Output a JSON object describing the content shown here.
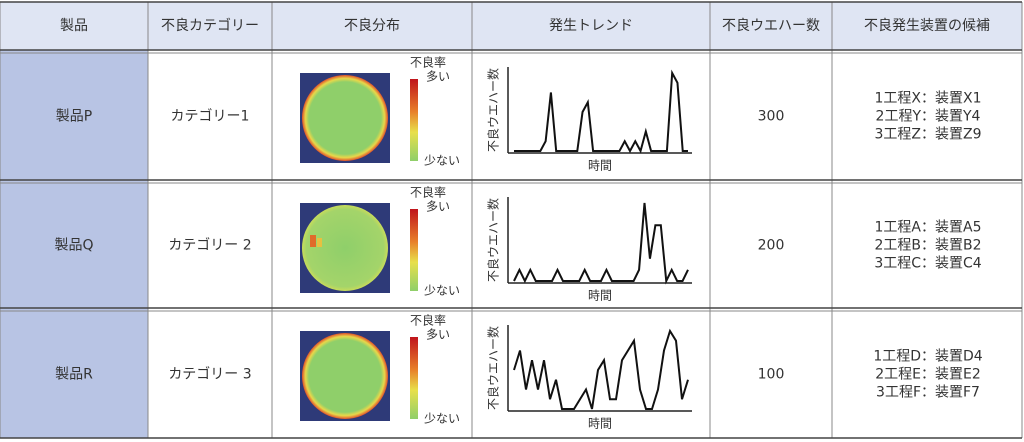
{
  "header": [
    "製品",
    "不良カテゴリー",
    "不良分布",
    "発生トレンド",
    "不良ウエハー数",
    "不良発生装置の候補"
  ],
  "rows": [
    {
      "product": "製品P",
      "category": "カテゴリー1",
      "map": {
        "rate": "不良率",
        "high": "多い",
        "low": "少ない"
      },
      "trend": {
        "y_label": "不良ウエハー数",
        "x_label": "時間",
        "values": [
          0,
          0,
          0,
          0,
          0,
          0,
          1,
          6,
          0,
          0,
          0,
          0,
          0,
          4,
          5,
          0,
          0,
          0,
          0,
          0,
          0,
          1,
          0,
          1,
          0,
          2,
          0,
          0,
          0,
          0,
          8,
          7,
          0,
          0
        ]
      },
      "count": "300",
      "candidates": [
        "1工程X：装置X1",
        "2工程Y：装置Y4",
        "3工程Z：装置Z9"
      ]
    },
    {
      "product": "製品Q",
      "category": "カテゴリー 2",
      "map": {
        "rate": "不良率",
        "high": "多い",
        "low": "少ない"
      },
      "trend": {
        "y_label": "不良ウエハー数",
        "x_label": "時間",
        "values": [
          0,
          1,
          0,
          1,
          0,
          0,
          0,
          0,
          1,
          0,
          0,
          0,
          0,
          1,
          0,
          0,
          0,
          1,
          0,
          0,
          0,
          0,
          0,
          1,
          7,
          2,
          5,
          5,
          0,
          1,
          0,
          0,
          1
        ]
      },
      "count": "200",
      "candidates": [
        "1工程A：装置A5",
        "2工程B：装置B2",
        "3工程C：装置C4"
      ]
    },
    {
      "product": "製品R",
      "category": "カテゴリー 3",
      "map": {
        "rate": "不良率",
        "high": "多い",
        "low": "少ない"
      },
      "trend": {
        "y_label": "不良ウエハー数",
        "x_label": "時間",
        "values": [
          4,
          6,
          2,
          5,
          2,
          5,
          1,
          3,
          0,
          0,
          0,
          1,
          2,
          0,
          4,
          5,
          1,
          1,
          5,
          6,
          7,
          2,
          0,
          0,
          2,
          6,
          8,
          7,
          1,
          3
        ]
      },
      "count": "100",
      "candidates": [
        "1工程D：装置D4",
        "2工程E：装置E2",
        "3工程F：装置F7"
      ]
    }
  ]
}
